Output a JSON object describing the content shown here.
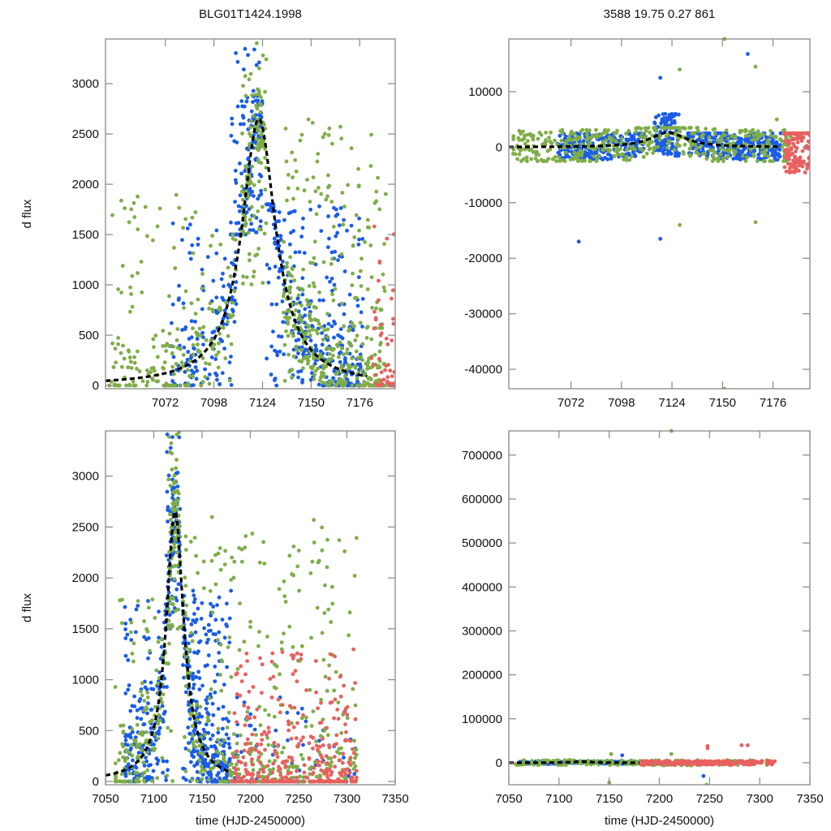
{
  "colors": {
    "series_a": "#1a5ce8",
    "series_b": "#7fad48",
    "series_c": "#e8605f",
    "model": "#000000",
    "frame": "#888888"
  },
  "chart_data": [
    {
      "type": "scatter",
      "panel": "top-left",
      "title": "BLG01T1424.1998",
      "xlabel": "",
      "ylabel": "d flux",
      "xlim": [
        7040,
        7195
      ],
      "ylim": [
        -32,
        3444
      ],
      "xticks": [
        7072,
        7098,
        7124,
        7150,
        7176
      ],
      "yticks": [
        0,
        500,
        1000,
        1500,
        2000,
        2500,
        3000
      ],
      "model": {
        "name": "model fit",
        "style": "dashed",
        "t0": 7122,
        "peak": 2650,
        "tE_half": 11
      },
      "series": [
        {
          "name": "blue",
          "color_key": "series_a",
          "clusters": [
            [
              7075,
              7110,
              0,
              1700,
              140
            ],
            [
              7107,
              7120,
              1500,
              3440,
              110
            ],
            [
              7120,
              7124,
              1500,
              3440,
              50
            ],
            [
              7126,
              7178,
              0,
              1800,
              320
            ]
          ]
        },
        {
          "name": "green",
          "color_key": "series_b",
          "clusters": [
            [
              7042,
              7110,
              0,
              1900,
              200
            ],
            [
              7113,
              7126,
              1000,
              3440,
              130
            ],
            [
              7135,
              7190,
              0,
              2700,
              380
            ]
          ]
        },
        {
          "name": "red",
          "color_key": "series_c",
          "clusters": [
            [
              7182,
              7195,
              0,
              1600,
              50
            ]
          ]
        }
      ]
    },
    {
      "type": "scatter",
      "panel": "top-right",
      "title": "3588  19.75  0.27  861",
      "xlabel": "",
      "ylabel": "",
      "xlim": [
        7040,
        7195
      ],
      "ylim": [
        -43500,
        19500
      ],
      "xticks": [
        7072,
        7098,
        7124,
        7150,
        7176
      ],
      "yticks": [
        -40000,
        -30000,
        -20000,
        -10000,
        0,
        10000
      ],
      "model": {
        "name": "model fit",
        "style": "dashed",
        "t0": 7122,
        "peak": 2650,
        "tE_half": 11
      },
      "series": [
        {
          "name": "blue",
          "color_key": "series_a",
          "clusters": [
            [
              7065,
              7110,
              -2500,
              2500,
              220
            ],
            [
              7115,
              7128,
              -2000,
              6000,
              120
            ],
            [
              7132,
              7180,
              -2500,
              2500,
              300
            ]
          ]
        },
        {
          "name": "green",
          "color_key": "series_b",
          "clusters": [
            [
              7042,
              7185,
              -2500,
              3500,
              450
            ]
          ]
        },
        {
          "name": "red",
          "color_key": "series_c",
          "clusters": [
            [
              7182,
              7195,
              -7000,
              2500,
              140
            ]
          ]
        }
      ],
      "outliers": [
        [
          7076,
          -17000,
          "series_a"
        ],
        [
          7118,
          12500,
          "series_a"
        ],
        [
          7118,
          -16500,
          "series_a"
        ],
        [
          7128,
          14000,
          "series_b"
        ],
        [
          7128,
          -14000,
          "series_b"
        ],
        [
          7151,
          19500,
          "series_b"
        ],
        [
          7151,
          -43500,
          "series_b"
        ],
        [
          7163,
          16800,
          "series_a"
        ],
        [
          7167,
          -13500,
          "series_b"
        ],
        [
          7167,
          14500,
          "series_b"
        ],
        [
          7178,
          5000,
          "series_b"
        ]
      ]
    },
    {
      "type": "scatter",
      "panel": "bottom-left",
      "title": "",
      "xlabel": "time (HJD-2450000)",
      "ylabel": "d flux",
      "xlim": [
        7050,
        7350
      ],
      "ylim": [
        -32,
        3444
      ],
      "xticks": [
        7050,
        7100,
        7150,
        7200,
        7250,
        7300,
        7350
      ],
      "yticks": [
        0,
        500,
        1000,
        1500,
        2000,
        2500,
        3000
      ],
      "model": {
        "name": "model fit",
        "style": "dashed",
        "t0": 7122,
        "peak": 2650,
        "tE_half": 11
      },
      "series": [
        {
          "name": "blue",
          "color_key": "series_a",
          "clusters": [
            [
              7070,
              7115,
              0,
              1800,
              180
            ],
            [
              7112,
              7128,
              1500,
              3440,
              120
            ],
            [
              7130,
              7180,
              0,
              1900,
              320
            ],
            [
              7180,
              7310,
              0,
              900,
              60
            ]
          ]
        },
        {
          "name": "green",
          "color_key": "series_b",
          "clusters": [
            [
              7060,
              7120,
              0,
              1800,
              160
            ],
            [
              7115,
              7128,
              1500,
              3440,
              90
            ],
            [
              7130,
              7310,
              0,
              2600,
              420
            ]
          ]
        },
        {
          "name": "red",
          "color_key": "series_c",
          "clusters": [
            [
              7180,
              7310,
              0,
              1300,
              330
            ]
          ]
        }
      ]
    },
    {
      "type": "scatter",
      "panel": "bottom-right",
      "title": "",
      "xlabel": "time (HJD-2450000)",
      "ylabel": "",
      "xlim": [
        7050,
        7350
      ],
      "ylim": [
        -50000,
        755000
      ],
      "xticks": [
        7050,
        7100,
        7150,
        7200,
        7250,
        7300,
        7350
      ],
      "yticks": [
        0,
        100000,
        200000,
        300000,
        400000,
        500000,
        600000,
        700000
      ],
      "model": {
        "name": "model fit",
        "style": "dashed",
        "t0": 7122,
        "peak": 2650,
        "tE_half": 11
      },
      "series": [
        {
          "name": "blue",
          "color_key": "series_a",
          "clusters": [
            [
              7060,
              7180,
              -3000,
              3000,
              260
            ]
          ]
        },
        {
          "name": "green",
          "color_key": "series_b",
          "clusters": [
            [
              7055,
              7310,
              -6000,
              6000,
              200
            ]
          ]
        },
        {
          "name": "red",
          "color_key": "series_c",
          "clusters": [
            [
              7180,
              7315,
              -5000,
              4000,
              300
            ]
          ]
        }
      ],
      "outliers": [
        [
          7212,
          755000,
          "series_b"
        ],
        [
          7152,
          20000,
          "series_b"
        ],
        [
          7212,
          20000,
          "series_b"
        ],
        [
          7150,
          -45000,
          "series_b"
        ],
        [
          7247,
          -50000,
          "series_b"
        ],
        [
          7248,
          38000,
          "series_c"
        ],
        [
          7248,
          33000,
          "series_c"
        ],
        [
          7282,
          40000,
          "series_c"
        ],
        [
          7288,
          40000,
          "series_c"
        ],
        [
          7244,
          -30000,
          "series_a"
        ],
        [
          7163,
          17000,
          "series_a"
        ]
      ]
    }
  ]
}
